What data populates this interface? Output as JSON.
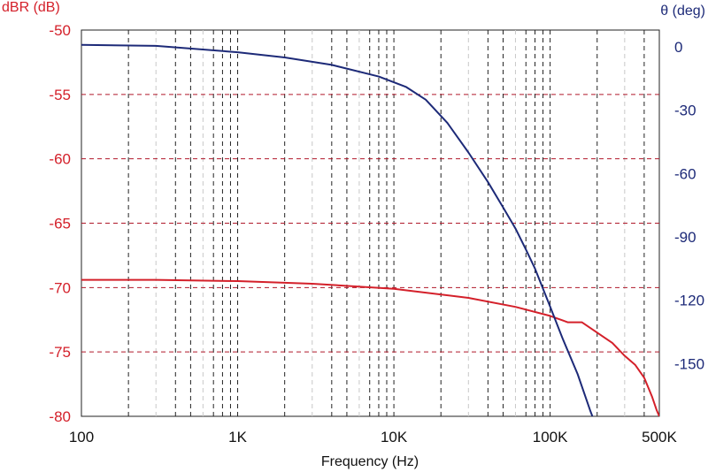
{
  "chart_data": {
    "type": "line",
    "xlabel": "Frequency (Hz)",
    "ylabel_left": "dBR (dB)",
    "ylabel_right": "θ (deg)",
    "x_scale": "log",
    "xlim": [
      100,
      500000
    ],
    "ylim_left": [
      -80,
      -50
    ],
    "ylim_right": [
      -175,
      8
    ],
    "x_ticks": [
      {
        "value": 100,
        "label": "100"
      },
      {
        "value": 1000,
        "label": "1K"
      },
      {
        "value": 10000,
        "label": "10K"
      },
      {
        "value": 100000,
        "label": "100K"
      },
      {
        "value": 500000,
        "label": "500K"
      }
    ],
    "y_left_ticks": [
      {
        "value": -50,
        "label": "-50"
      },
      {
        "value": -55,
        "label": "-55"
      },
      {
        "value": -60,
        "label": "-60"
      },
      {
        "value": -65,
        "label": "-65"
      },
      {
        "value": -70,
        "label": "-70"
      },
      {
        "value": -75,
        "label": "-75"
      },
      {
        "value": -80,
        "label": "-80"
      }
    ],
    "y_right_ticks": [
      {
        "value": 0,
        "label": "0"
      },
      {
        "value": -30,
        "label": "-30"
      },
      {
        "value": -60,
        "label": "-60"
      },
      {
        "value": -90,
        "label": "-90"
      },
      {
        "value": -120,
        "label": "-120"
      },
      {
        "value": -150,
        "label": "-150"
      }
    ],
    "grid": true,
    "series": [
      {
        "axis": "left",
        "color": "#d4202a",
        "x": [
          100,
          300,
          1000,
          3000,
          10000,
          30000,
          60000,
          100000,
          130000,
          160000,
          200000,
          250000,
          300000,
          350000,
          400000,
          450000,
          480000,
          500000
        ],
        "values": [
          -69.4,
          -69.4,
          -69.5,
          -69.7,
          -70.1,
          -70.8,
          -71.5,
          -72.2,
          -72.7,
          -72.7,
          -73.5,
          -74.3,
          -75.3,
          -76.0,
          -77.0,
          -78.5,
          -79.5,
          -80.0
        ]
      },
      {
        "axis": "right",
        "color": "#1d2a78",
        "x": [
          100,
          300,
          1000,
          2000,
          4000,
          8000,
          12000,
          16000,
          22000,
          30000,
          40000,
          50000,
          60000,
          70000,
          80000,
          100000,
          120000,
          150000,
          180000,
          200000
        ],
        "values": [
          1,
          0.5,
          -2.5,
          -5,
          -8.5,
          -14,
          -19,
          -25,
          -36,
          -50,
          -64,
          -76,
          -86,
          -96,
          -105,
          -123,
          -138,
          -155,
          -172,
          -181
        ]
      }
    ]
  }
}
